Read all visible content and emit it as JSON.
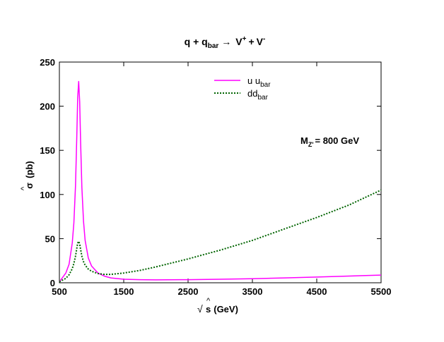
{
  "chart_data": {
    "type": "line",
    "title": {
      "base": "q + q",
      "sub": "bar",
      "arrow": "→",
      "rest_a": "V",
      "sup_a": "+",
      "plus": "+",
      "rest_b": "V",
      "sup_b": "-"
    },
    "xlabel": {
      "root": "√",
      "hat": "^",
      "var": "s",
      "unit": "(GeV)"
    },
    "ylabel": {
      "hat": "^",
      "var": "σ",
      "unit": "(pb)"
    },
    "xlim": [
      500,
      5500
    ],
    "ylim": [
      0,
      250
    ],
    "xticks": [
      500,
      1500,
      2500,
      3500,
      4500,
      5500
    ],
    "yticks": [
      0,
      50,
      100,
      150,
      200,
      250
    ],
    "annotation": {
      "main": "M",
      "sub": "Z'",
      "rest": "= 800 GeV"
    },
    "legend_position": "top-center",
    "grid": false,
    "series": [
      {
        "name": "u u",
        "name_sub": "bar",
        "color": "#ff00ff",
        "style": "solid",
        "x": [
          500,
          600,
          650,
          700,
          725,
          750,
          770,
          785,
          800,
          815,
          830,
          850,
          875,
          900,
          950,
          1000,
          1100,
          1200,
          1300,
          1500,
          1750,
          2000,
          2500,
          3000,
          3500,
          4000,
          4500,
          5000,
          5500
        ],
        "y": [
          1,
          11,
          21,
          45,
          68,
          110,
          165,
          210,
          228,
          205,
          160,
          108,
          70,
          48,
          28,
          19,
          11,
          7.5,
          5.5,
          4,
          3.5,
          3.3,
          3.5,
          4,
          4.6,
          5.5,
          6.5,
          7.6,
          8.7
        ]
      },
      {
        "name": "dd",
        "name_sub": "bar",
        "color": "#006400",
        "style": "dotted",
        "x": [
          500,
          600,
          650,
          700,
          725,
          750,
          770,
          785,
          800,
          815,
          830,
          850,
          875,
          900,
          950,
          1000,
          1100,
          1200,
          1300,
          1500,
          1750,
          2000,
          2500,
          3000,
          3500,
          4000,
          4500,
          5000,
          5500
        ],
        "y": [
          1,
          5,
          9,
          16,
          22,
          30,
          39,
          45,
          47,
          44,
          38,
          30,
          24,
          20,
          15.5,
          13,
          10.5,
          9.5,
          9.5,
          11,
          14,
          18,
          27,
          37,
          48,
          61,
          74,
          88,
          105
        ]
      }
    ]
  }
}
